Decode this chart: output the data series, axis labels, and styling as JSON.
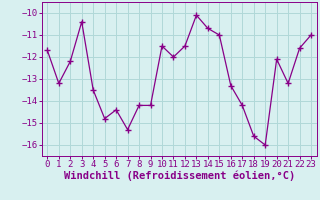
{
  "x": [
    0,
    1,
    2,
    3,
    4,
    5,
    6,
    7,
    8,
    9,
    10,
    11,
    12,
    13,
    14,
    15,
    16,
    17,
    18,
    19,
    20,
    21,
    22,
    23
  ],
  "y": [
    -11.7,
    -13.2,
    -12.2,
    -10.4,
    -13.5,
    -14.8,
    -14.4,
    -15.3,
    -14.2,
    -14.2,
    -11.5,
    -12.0,
    -11.5,
    -10.1,
    -10.7,
    -11.0,
    -13.3,
    -14.2,
    -15.6,
    -16.0,
    -12.1,
    -13.2,
    -11.6,
    -11.0
  ],
  "line_color": "#880088",
  "marker": "+",
  "bg_color": "#d8f0f0",
  "grid_color": "#b0d8d8",
  "xlabel": "Windchill (Refroidissement éolien,°C)",
  "ylim": [
    -16.5,
    -9.5
  ],
  "xlim": [
    -0.5,
    23.5
  ],
  "yticks": [
    -16,
    -15,
    -14,
    -13,
    -12,
    -11,
    -10
  ],
  "xticks": [
    0,
    1,
    2,
    3,
    4,
    5,
    6,
    7,
    8,
    9,
    10,
    11,
    12,
    13,
    14,
    15,
    16,
    17,
    18,
    19,
    20,
    21,
    22,
    23
  ],
  "tick_fontsize": 6.5,
  "xlabel_fontsize": 7.5
}
